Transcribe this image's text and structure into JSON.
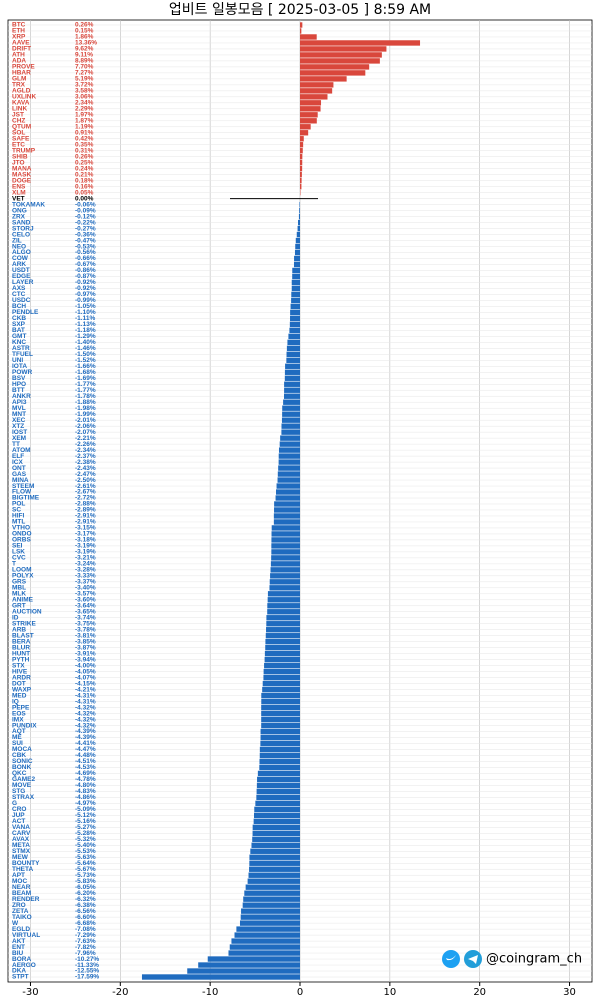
{
  "chart_data": {
    "type": "barh",
    "title": "업비트 일봉모음 [ 2025-03-05 ]  8:59 AM",
    "watermark": "@coingram_ch",
    "categories": [
      "BTC",
      "ETH",
      "XRP",
      "AAVE",
      "DRIFT",
      "ATH",
      "ADA",
      "PROVE",
      "HBAR",
      "GLM",
      "TRX",
      "AGLD",
      "UXLINK",
      "KAVA",
      "LINK",
      "JST",
      "CHZ",
      "QTUM",
      "SOL",
      "SAFE",
      "ETC",
      "TRUMP",
      "SHIB",
      "JTO",
      "MANA",
      "MASK",
      "DOGE",
      "ENS",
      "XLM",
      "VET",
      "TOKAMAK",
      "ONG",
      "ZRX",
      "SAND",
      "STORJ",
      "CELO",
      "ZIL",
      "NEO",
      "ALGO",
      "COW",
      "ARK",
      "USDT",
      "EDGE",
      "LAYER",
      "AXS",
      "CTC",
      "USDC",
      "BCH",
      "PENDLE",
      "CKB",
      "SXP",
      "BAT",
      "GMT",
      "KNC",
      "ASTR",
      "TFUEL",
      "UNI",
      "IOTA",
      "POWR",
      "BSV",
      "HPO",
      "BTT",
      "ANKR",
      "API3",
      "MVL",
      "MNT",
      "XEC",
      "XTZ",
      "IOST",
      "XEM",
      "TT",
      "ATOM",
      "ELF",
      "ICX",
      "ONT",
      "GAS",
      "MINA",
      "STEEM",
      "FLOW",
      "BIGTIME",
      "POL",
      "SC",
      "HIFI",
      "MTL",
      "VTHO",
      "ONDO",
      "ORBS",
      "SEI",
      "LSK",
      "CVC",
      "T",
      "LOOM",
      "POLYX",
      "GRS",
      "MBL",
      "MLK",
      "ANIME",
      "GRT",
      "AUCTION",
      "ID",
      "STRIKE",
      "ARB",
      "BLAST",
      "BERA",
      "BLUR",
      "HUNT",
      "PYTH",
      "STX",
      "HIVE",
      "ARDR",
      "DOT",
      "WAXP",
      "MED",
      "IQ",
      "PEPE",
      "EOS",
      "IMX",
      "PUNDIX",
      "AQT",
      "ME",
      "SUI",
      "MOCA",
      "CBK",
      "SONIC",
      "BONK",
      "QKC",
      "GAME2",
      "MOVE",
      "STG",
      "STRAX",
      "G",
      "CRO",
      "JUP",
      "ACT",
      "VANA",
      "CARV",
      "AVAX",
      "META",
      "STMX",
      "MEW",
      "BOUNTY",
      "THETA",
      "APT",
      "MOC",
      "NEAR",
      "BEAM",
      "RENDER",
      "ZRO",
      "ZETA",
      "TAIKO",
      "W",
      "EGLD",
      "VIRTUAL",
      "AKT",
      "ENT",
      "BIU",
      "BORA",
      "AERGO",
      "DKA",
      "STPT"
    ],
    "values": [
      0.26,
      0.15,
      1.86,
      13.36,
      9.62,
      9.11,
      8.89,
      7.7,
      7.27,
      5.19,
      3.72,
      3.58,
      3.06,
      2.34,
      2.29,
      1.97,
      1.87,
      1.19,
      0.91,
      0.42,
      0.35,
      0.31,
      0.26,
      0.25,
      0.24,
      0.21,
      0.18,
      0.16,
      0.05,
      0,
      -0.06,
      -0.09,
      -0.12,
      -0.22,
      -0.27,
      -0.36,
      -0.47,
      -0.53,
      -0.56,
      -0.66,
      -0.67,
      -0.86,
      -0.87,
      -0.92,
      -0.92,
      -0.97,
      -0.99,
      -1.05,
      -1.1,
      -1.11,
      -1.13,
      -1.18,
      -1.29,
      -1.4,
      -1.46,
      -1.5,
      -1.52,
      -1.66,
      -1.68,
      -1.69,
      -1.77,
      -1.77,
      -1.78,
      -1.88,
      -1.98,
      -1.99,
      -2.01,
      -2.06,
      -2.07,
      -2.21,
      -2.26,
      -2.34,
      -2.37,
      -2.38,
      -2.43,
      -2.47,
      -2.5,
      -2.61,
      -2.67,
      -2.72,
      -2.88,
      -2.89,
      -2.91,
      -2.91,
      -3.15,
      -3.17,
      -3.18,
      -3.19,
      -3.19,
      -3.21,
      -3.24,
      -3.28,
      -3.33,
      -3.37,
      -3.4,
      -3.57,
      -3.6,
      -3.64,
      -3.65,
      -3.74,
      -3.75,
      -3.78,
      -3.81,
      -3.85,
      -3.87,
      -3.91,
      -3.94,
      -4,
      -4.05,
      -4.07,
      -4.15,
      -4.21,
      -4.31,
      -4.31,
      -4.32,
      -4.32,
      -4.32,
      -4.32,
      -4.39,
      -4.39,
      -4.41,
      -4.47,
      -4.48,
      -4.51,
      -4.53,
      -4.69,
      -4.78,
      -4.8,
      -4.83,
      -4.86,
      -4.97,
      -5.09,
      -5.12,
      -5.16,
      -5.27,
      -5.28,
      -5.32,
      -5.4,
      -5.53,
      -5.63,
      -5.64,
      -5.67,
      -5.73,
      -5.83,
      -6.05,
      -6.2,
      -6.32,
      -6.38,
      -6.56,
      -6.6,
      -6.68,
      -7.08,
      -7.29,
      -7.63,
      -7.82,
      -7.96,
      -10.27,
      -11.33,
      -12.55,
      -17.59
    ],
    "value_labels": [
      "0.26%",
      "0.15%",
      "1.86%",
      "13.36%",
      "9.62%",
      "9.11%",
      "8.89%",
      "7.70%",
      "7.27%",
      "5.19%",
      "3.72%",
      "3.58%",
      "3.06%",
      "2.34%",
      "2.29%",
      "1.97%",
      "1.87%",
      "1.19%",
      "0.91%",
      "0.42%",
      "0.35%",
      "0.31%",
      "0.26%",
      "0.25%",
      "0.24%",
      "0.21%",
      "0.18%",
      "0.16%",
      "0.05%",
      "0.00%",
      "-0.06%",
      "-0.09%",
      "-0.12%",
      "-0.22%",
      "-0.27%",
      "-0.36%",
      "-0.47%",
      "-0.53%",
      "-0.56%",
      "-0.66%",
      "-0.67%",
      "-0.86%",
      "-0.87%",
      "-0.92%",
      "-0.92%",
      "-0.97%",
      "-0.99%",
      "-1.05%",
      "-1.10%",
      "-1.11%",
      "-1.13%",
      "-1.18%",
      "-1.29%",
      "-1.40%",
      "-1.46%",
      "-1.50%",
      "-1.52%",
      "-1.66%",
      "-1.68%",
      "-1.69%",
      "-1.77%",
      "-1.77%",
      "-1.78%",
      "-1.88%",
      "-1.98%",
      "-1.99%",
      "-2.01%",
      "-2.06%",
      "-2.07%",
      "-2.21%",
      "-2.26%",
      "-2.34%",
      "-2.37%",
      "-2.38%",
      "-2.43%",
      "-2.47%",
      "-2.50%",
      "-2.61%",
      "-2.67%",
      "-2.72%",
      "-2.88%",
      "-2.89%",
      "-2.91%",
      "-2.91%",
      "-3.15%",
      "-3.17%",
      "-3.18%",
      "-3.19%",
      "-3.19%",
      "-3.21%",
      "-3.24%",
      "-3.28%",
      "-3.33%",
      "-3.37%",
      "-3.40%",
      "-3.57%",
      "-3.60%",
      "-3.64%",
      "-3.65%",
      "-3.74%",
      "-3.75%",
      "-3.78%",
      "-3.81%",
      "-3.85%",
      "-3.87%",
      "-3.91%",
      "-3.94%",
      "-4.00%",
      "-4.05%",
      "-4.07%",
      "-4.15%",
      "-4.21%",
      "-4.31%",
      "-4.31%",
      "-4.32%",
      "-4.32%",
      "-4.32%",
      "-4.32%",
      "-4.39%",
      "-4.39%",
      "-4.41%",
      "-4.47%",
      "-4.48%",
      "-4.51%",
      "-4.53%",
      "-4.69%",
      "-4.78%",
      "-4.80%",
      "-4.83%",
      "-4.86%",
      "-4.97%",
      "-5.09%",
      "-5.12%",
      "-5.16%",
      "-5.27%",
      "-5.28%",
      "-5.32%",
      "-5.40%",
      "-5.53%",
      "-5.63%",
      "-5.64%",
      "-5.67%",
      "-5.73%",
      "-5.83%",
      "-6.05%",
      "-6.20%",
      "-6.32%",
      "-6.38%",
      "-6.56%",
      "-6.60%",
      "-6.68%",
      "-7.08%",
      "-7.29%",
      "-7.63%",
      "-7.82%",
      "-7.96%",
      "-10.27%",
      "-11.33%",
      "-12.55%",
      "-17.59%"
    ],
    "colors": {
      "up": "#d9473c",
      "down": "#1f6bbf",
      "flat": "#000000"
    },
    "xlim": [
      -32.5,
      32.5
    ],
    "xticks": [
      -30,
      -20,
      -10,
      0,
      10,
      20,
      30
    ],
    "grid": true
  }
}
